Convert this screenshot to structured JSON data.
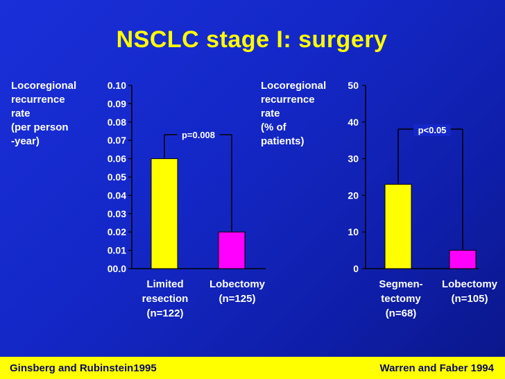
{
  "title": "NSCLC stage I: surgery",
  "footer": {
    "left": "Ginsberg and Rubinstein1995",
    "right": "Warren and Faber 1994"
  },
  "colors": {
    "background": "#1428c8",
    "title": "#ffff00",
    "bar_limited": "#ffff00",
    "bar_lobectomy": "#ff00ff",
    "footer_bg": "#ffff00"
  },
  "chart_data": [
    {
      "type": "bar",
      "ylabel": "Locoregional\nrecurrence\nrate\n(per person\n-year)",
      "categories": [
        "Limited\nresection\n(n=122)",
        "Lobectomy\n(n=125)"
      ],
      "values": [
        0.06,
        0.02
      ],
      "bar_colors": [
        "#ffff00",
        "#ff00ff"
      ],
      "ylim": [
        0,
        0.1
      ],
      "yticks": [
        "00.0",
        "0.01",
        "0.02",
        "0.03",
        "0.04",
        "0.05",
        "0.06",
        "0.07",
        "0.08",
        "0.09",
        "0.10"
      ],
      "annotation": "p=0.008",
      "grid": false
    },
    {
      "type": "bar",
      "ylabel": "Locoregional\nrecurrence\nrate\n(% of\npatients)",
      "categories": [
        "Segmen-\ntectomy\n(n=68)",
        "Lobectomy\n(n=105)"
      ],
      "values": [
        23,
        5
      ],
      "bar_colors": [
        "#ffff00",
        "#ff00ff"
      ],
      "ylim": [
        0,
        50
      ],
      "yticks": [
        "0",
        "10",
        "20",
        "30",
        "40",
        "50"
      ],
      "annotation": "p<0.05",
      "grid": false
    }
  ]
}
